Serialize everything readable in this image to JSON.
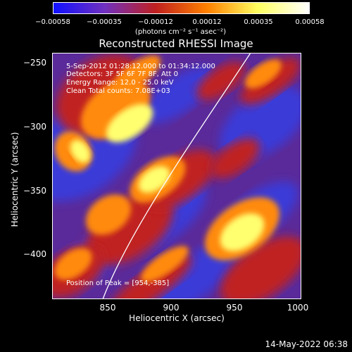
{
  "colorbar": {
    "ticks": [
      "−0.00058",
      "−0.00035",
      "−0.00012",
      "0.00012",
      "0.00035",
      "0.00058"
    ],
    "unit": "(photons cm⁻² s⁻¹ asec⁻²)",
    "colors": [
      "#1010ff",
      "#7030c0",
      "#c02020",
      "#ff8000",
      "#ffff60",
      "#ffffff"
    ]
  },
  "plot": {
    "title": "Reconstructed RHESSI Image",
    "xlabel": "Heliocentric X (arcsec)",
    "ylabel": "Heliocentric Y (arcsec)",
    "xticks": [
      "850",
      "900",
      "950",
      "1000"
    ],
    "yticks": [
      "−250",
      "−300",
      "−350",
      "−400"
    ],
    "info": [
      "5-Sep-2012 01:28:12.000 to 01:34:12.000",
      "Detectors: 3F 5F 6F 7F 8F, Att 0",
      "Energy Range: 12.0 - 25.0 keV",
      "Clean     Total counts: 7.08E+03"
    ],
    "peak": "Position of Peak = [954,-385]",
    "palette": {
      "blue": "#3a3ad8",
      "purple": "#6a2aa0",
      "red": "#c02020",
      "orange": "#ff8a10",
      "yellow": "#ffff70"
    }
  },
  "footer": {
    "date": "14-May-2022 06:38"
  }
}
